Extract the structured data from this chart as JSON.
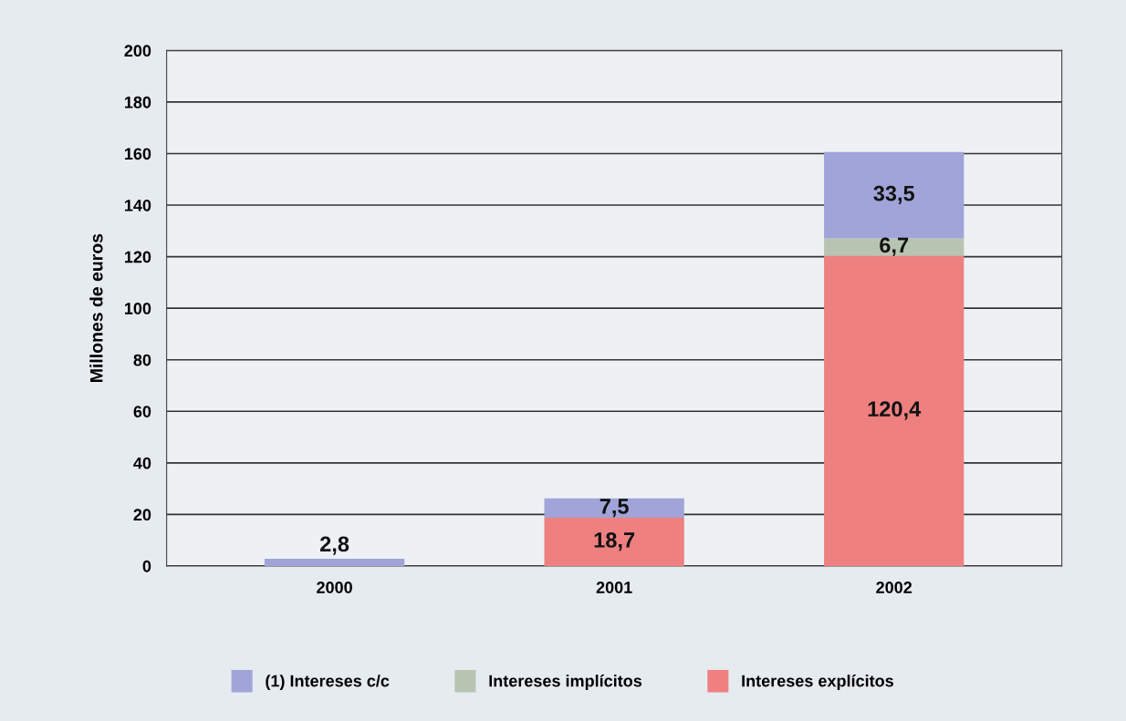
{
  "chart_data": {
    "type": "bar",
    "stacked": true,
    "ylabel": "Millones de euros",
    "categories": [
      "2000",
      "2001",
      "2002"
    ],
    "series": [
      {
        "name": "Intereses explícitos",
        "color": "#ee8080",
        "values": [
          null,
          18.7,
          120.4
        ],
        "value_labels": [
          null,
          "18,7",
          "120,4"
        ]
      },
      {
        "name": "Intereses implícitos",
        "color": "#b8c4b2",
        "values": [
          null,
          null,
          6.7
        ],
        "value_labels": [
          null,
          null,
          "6,7"
        ]
      },
      {
        "name": "(1) Intereses c/c",
        "color": "#a0a4d8",
        "values": [
          2.8,
          7.5,
          33.5
        ],
        "value_labels": [
          "2,8",
          "7,5",
          "33,5"
        ]
      }
    ],
    "ylim": [
      0,
      200
    ],
    "yticks": [
      0,
      20,
      40,
      60,
      80,
      100,
      120,
      140,
      160,
      180,
      200
    ],
    "grid": "y",
    "legend": "bottom"
  }
}
